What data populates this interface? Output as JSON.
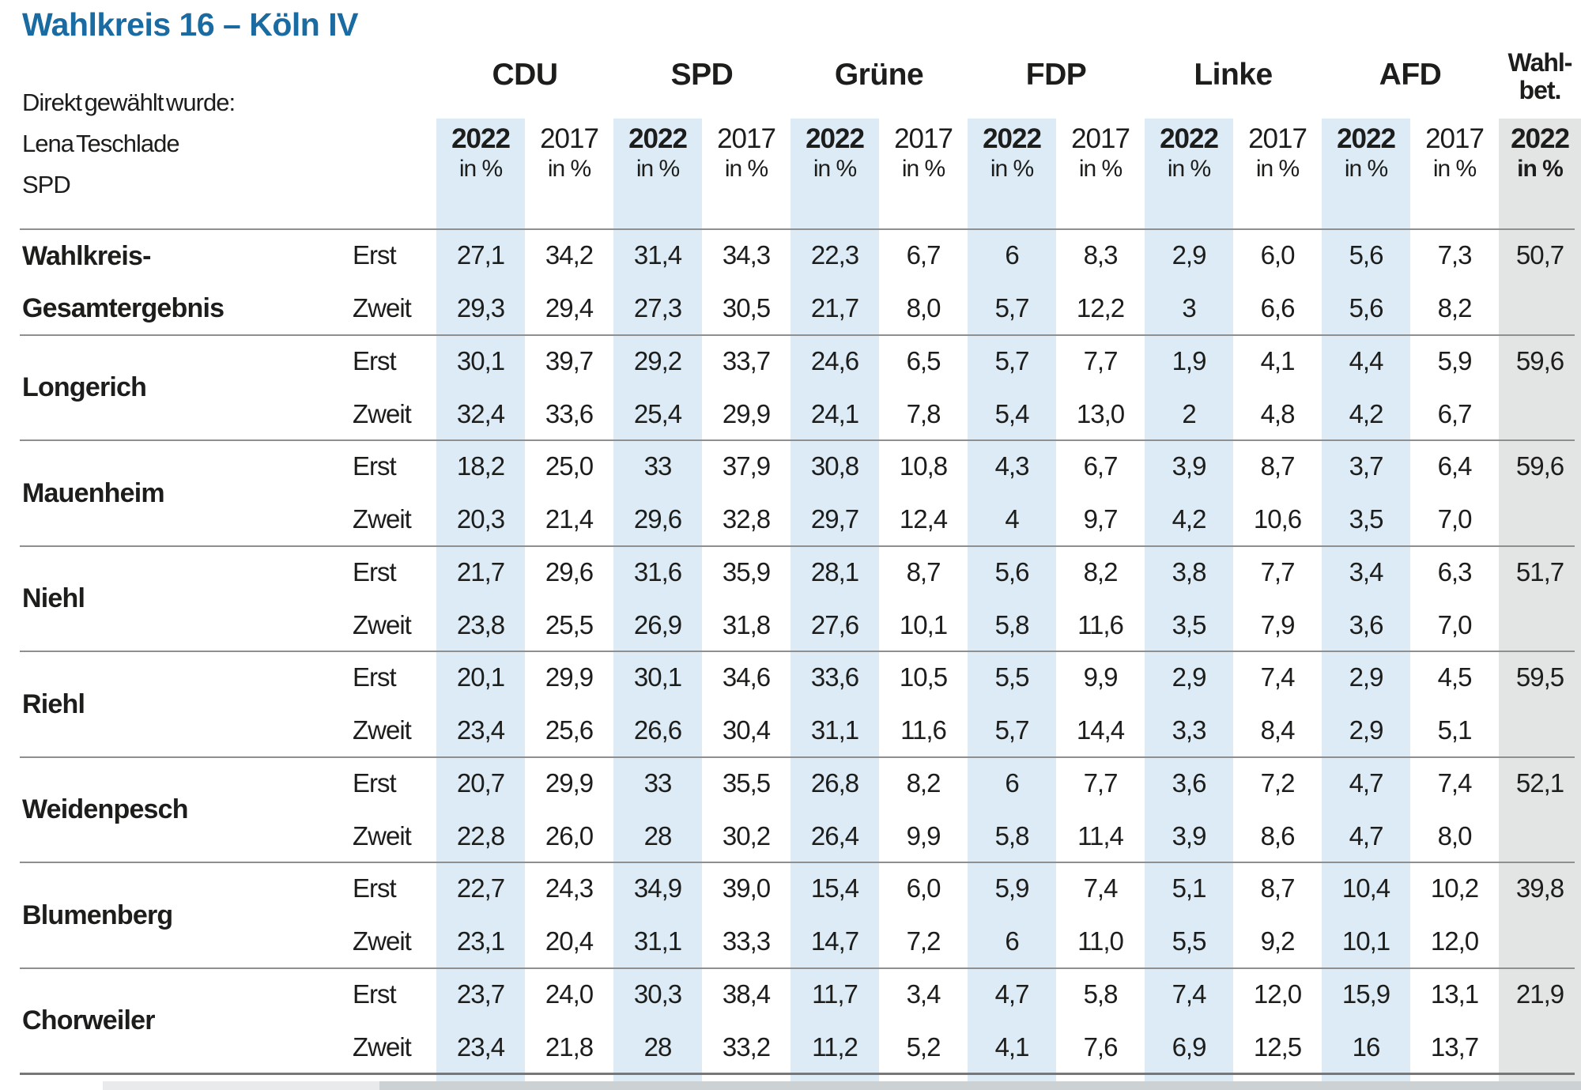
{
  "title": "Wahlkreis 16 – Köln IV",
  "info_lines": [
    "Direkt gewählt wurde:",
    "Lena Teschlade",
    "SPD"
  ],
  "header": {
    "parties": [
      "CDU",
      "SPD",
      "Grüne",
      "FDP",
      "Linke",
      "AFD"
    ],
    "turnout_label_lines": [
      "Wahl-",
      "bet."
    ],
    "year_current": "2022",
    "year_previous": "2017",
    "unit_label": "in %"
  },
  "vote_type_labels": {
    "erst": "Erst",
    "zweit": "Zweit"
  },
  "colors": {
    "title_blue": "#1a6ba2",
    "stripe_blue": "#dcebf5",
    "stripe_gray": "#e3e4e4",
    "rule_gray": "#8f8f8f",
    "text": "#1d1d1b"
  },
  "chart_data": {
    "type": "table",
    "title": "Wahlkreis 16 – Köln IV",
    "unit": "percent",
    "columns": [
      "CDU 2022 in %",
      "CDU 2017 in %",
      "SPD 2022 in %",
      "SPD 2017 in %",
      "Grüne 2022 in %",
      "Grüne 2017 in %",
      "FDP 2022 in %",
      "FDP 2017 in %",
      "Linke 2022 in %",
      "Linke 2017 in %",
      "AFD 2022 in %",
      "AFD 2017 in %",
      "Wahlbet. 2022 in %"
    ],
    "row_types": [
      "Erststimme",
      "Zweitstimme"
    ],
    "districts": [
      {
        "name": "Wahlkreis-Gesamtergebnis",
        "name_lines": [
          "Wahlkreis-",
          "Gesamtergebnis"
        ],
        "erst": [
          "27,1",
          "34,2",
          "31,4",
          "34,3",
          "22,3",
          "6,7",
          "6",
          "8,3",
          "2,9",
          "6,0",
          "5,6",
          "7,3"
        ],
        "zweit": [
          "29,3",
          "29,4",
          "27,3",
          "30,5",
          "21,7",
          "8,0",
          "5,7",
          "12,2",
          "3",
          "6,6",
          "5,6",
          "8,2"
        ],
        "wahlbet": "50,7"
      },
      {
        "name": "Longerich",
        "name_lines": [
          "Longerich"
        ],
        "erst": [
          "30,1",
          "39,7",
          "29,2",
          "33,7",
          "24,6",
          "6,5",
          "5,7",
          "7,7",
          "1,9",
          "4,1",
          "4,4",
          "5,9"
        ],
        "zweit": [
          "32,4",
          "33,6",
          "25,4",
          "29,9",
          "24,1",
          "7,8",
          "5,4",
          "13,0",
          "2",
          "4,8",
          "4,2",
          "6,7"
        ],
        "wahlbet": "59,6"
      },
      {
        "name": "Mauenheim",
        "name_lines": [
          "Mauenheim"
        ],
        "erst": [
          "18,2",
          "25,0",
          "33",
          "37,9",
          "30,8",
          "10,8",
          "4,3",
          "6,7",
          "3,9",
          "8,7",
          "3,7",
          "6,4"
        ],
        "zweit": [
          "20,3",
          "21,4",
          "29,6",
          "32,8",
          "29,7",
          "12,4",
          "4",
          "9,7",
          "4,2",
          "10,6",
          "3,5",
          "7,0"
        ],
        "wahlbet": "59,6"
      },
      {
        "name": "Niehl",
        "name_lines": [
          "Niehl"
        ],
        "erst": [
          "21,7",
          "29,6",
          "31,6",
          "35,9",
          "28,1",
          "8,7",
          "5,6",
          "8,2",
          "3,8",
          "7,7",
          "3,4",
          "6,3"
        ],
        "zweit": [
          "23,8",
          "25,5",
          "26,9",
          "31,8",
          "27,6",
          "10,1",
          "5,8",
          "11,6",
          "3,5",
          "7,9",
          "3,6",
          "7,0"
        ],
        "wahlbet": "51,7"
      },
      {
        "name": "Riehl",
        "name_lines": [
          "Riehl"
        ],
        "erst": [
          "20,1",
          "29,9",
          "30,1",
          "34,6",
          "33,6",
          "10,5",
          "5,5",
          "9,9",
          "2,9",
          "7,4",
          "2,9",
          "4,5"
        ],
        "zweit": [
          "23,4",
          "25,6",
          "26,6",
          "30,4",
          "31,1",
          "11,6",
          "5,7",
          "14,4",
          "3,3",
          "8,4",
          "2,9",
          "5,1"
        ],
        "wahlbet": "59,5"
      },
      {
        "name": "Weidenpesch",
        "name_lines": [
          "Weidenpesch"
        ],
        "erst": [
          "20,7",
          "29,9",
          "33",
          "35,5",
          "26,8",
          "8,2",
          "6",
          "7,7",
          "3,6",
          "7,2",
          "4,7",
          "7,4"
        ],
        "zweit": [
          "22,8",
          "26,0",
          "28",
          "30,2",
          "26,4",
          "9,9",
          "5,8",
          "11,4",
          "3,9",
          "8,6",
          "4,7",
          "8,0"
        ],
        "wahlbet": "52,1"
      },
      {
        "name": "Blumenberg",
        "name_lines": [
          "Blumenberg"
        ],
        "erst": [
          "22,7",
          "24,3",
          "34,9",
          "39,0",
          "15,4",
          "6,0",
          "5,9",
          "7,4",
          "5,1",
          "8,7",
          "10,4",
          "10,2"
        ],
        "zweit": [
          "23,1",
          "20,4",
          "31,1",
          "33,3",
          "14,7",
          "7,2",
          "6",
          "11,0",
          "5,5",
          "9,2",
          "10,1",
          "12,0"
        ],
        "wahlbet": "39,8"
      },
      {
        "name": "Chorweiler",
        "name_lines": [
          "Chorweiler"
        ],
        "erst": [
          "23,7",
          "24,0",
          "30,3",
          "38,4",
          "11,7",
          "3,4",
          "4,7",
          "5,8",
          "7,4",
          "12,0",
          "15,9",
          "13,1"
        ],
        "zweit": [
          "23,4",
          "21,8",
          "28",
          "33,2",
          "11,2",
          "5,2",
          "4,1",
          "7,6",
          "6,9",
          "12,5",
          "16",
          "13,7"
        ],
        "wahlbet": "21,9"
      }
    ]
  }
}
